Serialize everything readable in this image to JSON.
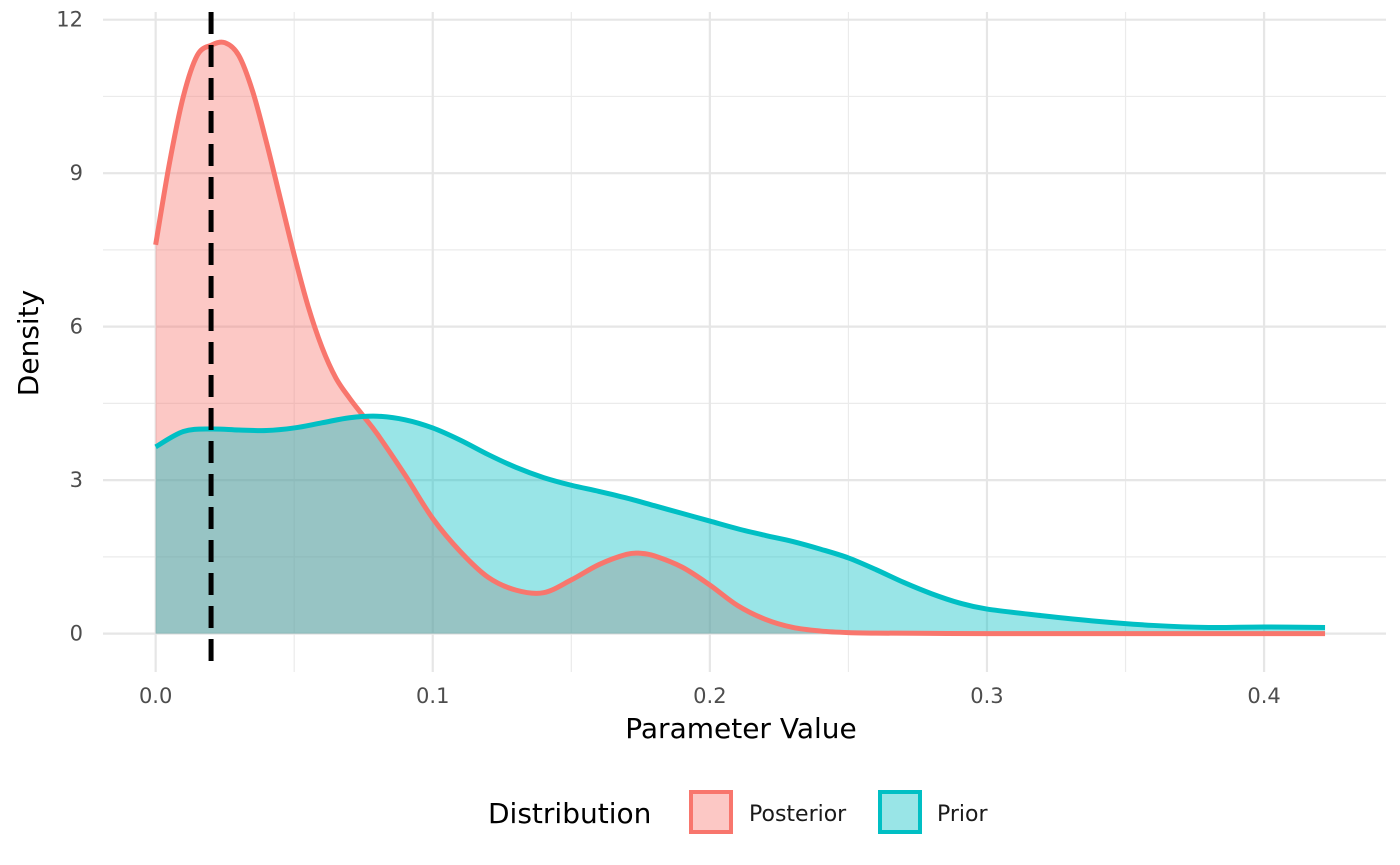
{
  "chart_data": {
    "type": "area",
    "xlabel": "Parameter Value",
    "ylabel": "Density",
    "xlim": [
      -0.019,
      0.444
    ],
    "ylim": [
      -0.75,
      12.15
    ],
    "x_ticks": [
      0.0,
      0.1,
      0.2,
      0.3,
      0.4
    ],
    "x_tick_labels": [
      "0.0",
      "0.1",
      "0.2",
      "0.3",
      "0.4"
    ],
    "y_ticks": [
      0,
      3,
      6,
      9,
      12
    ],
    "y_tick_labels": [
      "0",
      "3",
      "6",
      "9",
      "12"
    ],
    "grid": true,
    "legend": {
      "title": "Distribution",
      "position": "bottom",
      "entries": [
        "Posterior",
        "Prior"
      ]
    },
    "reference_line": {
      "x": 0.02,
      "style": "dashed",
      "color": "#000000"
    },
    "series": [
      {
        "name": "Posterior",
        "color": "#F8766D",
        "fill": "#F8766D",
        "x": [
          0.0,
          0.005,
          0.01,
          0.015,
          0.02,
          0.025,
          0.03,
          0.035,
          0.04,
          0.045,
          0.05,
          0.055,
          0.06,
          0.065,
          0.07,
          0.075,
          0.08,
          0.09,
          0.1,
          0.11,
          0.12,
          0.13,
          0.14,
          0.15,
          0.16,
          0.17,
          0.175,
          0.18,
          0.19,
          0.2,
          0.21,
          0.22,
          0.23,
          0.24,
          0.25,
          0.26,
          0.28,
          0.3,
          0.35,
          0.4,
          0.422
        ],
        "y": [
          7.6,
          9.2,
          10.5,
          11.3,
          11.5,
          11.55,
          11.3,
          10.6,
          9.6,
          8.5,
          7.4,
          6.4,
          5.6,
          5.0,
          4.6,
          4.25,
          3.9,
          3.1,
          2.25,
          1.6,
          1.1,
          0.85,
          0.8,
          1.05,
          1.35,
          1.55,
          1.57,
          1.52,
          1.3,
          0.95,
          0.55,
          0.28,
          0.12,
          0.05,
          0.02,
          0.01,
          0.005,
          0.0,
          0.0,
          0.0,
          0.0
        ]
      },
      {
        "name": "Prior",
        "color": "#00BFC4",
        "fill": "#00BFC4",
        "x": [
          0.0,
          0.01,
          0.02,
          0.03,
          0.04,
          0.05,
          0.06,
          0.07,
          0.08,
          0.09,
          0.1,
          0.11,
          0.12,
          0.13,
          0.14,
          0.15,
          0.16,
          0.17,
          0.18,
          0.19,
          0.2,
          0.21,
          0.22,
          0.23,
          0.24,
          0.25,
          0.26,
          0.27,
          0.28,
          0.29,
          0.3,
          0.32,
          0.34,
          0.36,
          0.38,
          0.4,
          0.422
        ],
        "y": [
          3.65,
          3.95,
          4.0,
          3.98,
          3.97,
          4.02,
          4.12,
          4.22,
          4.25,
          4.18,
          4.02,
          3.78,
          3.5,
          3.25,
          3.05,
          2.9,
          2.78,
          2.65,
          2.5,
          2.35,
          2.2,
          2.05,
          1.92,
          1.8,
          1.65,
          1.48,
          1.25,
          1.0,
          0.78,
          0.6,
          0.48,
          0.35,
          0.24,
          0.16,
          0.12,
          0.13,
          0.12
        ]
      }
    ]
  }
}
